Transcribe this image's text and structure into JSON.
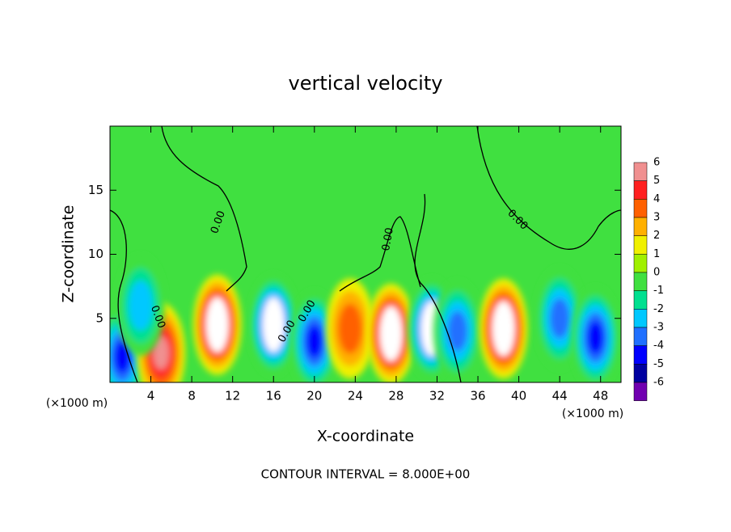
{
  "chart_data": {
    "type": "contour",
    "title": "vertical velocity",
    "xlabel": "X-coordinate",
    "ylabel": "Z-coordinate",
    "x_unit": "(×1000 m)",
    "y_unit": "(×1000 m)",
    "annotation": "CONTOUR INTERVAL = 8.000E+00",
    "contour_labels": [
      "0.00",
      "0.00",
      "0.00",
      "0.00",
      "0.00",
      "0.00"
    ],
    "xlim": [
      0,
      50
    ],
    "ylim": [
      0,
      20
    ],
    "xticks": [
      4,
      8,
      12,
      16,
      20,
      24,
      28,
      32,
      36,
      40,
      44,
      48
    ],
    "yticks": [
      5,
      10,
      15
    ],
    "background_color": "#40e040",
    "colorbar": {
      "ticks": [
        6,
        5,
        4,
        3,
        2,
        1,
        0,
        -1,
        -2,
        -3,
        -4,
        -5,
        -6
      ],
      "colors": [
        "#f09090",
        "#ff2020",
        "#ff6000",
        "#ffb000",
        "#f0f000",
        "#a0f000",
        "#40e040",
        "#00e090",
        "#00c8ff",
        "#2070ff",
        "#0000ff",
        "#0000a0",
        "#7000b0"
      ]
    },
    "blobs": [
      {
        "x": 1.2,
        "z": 2,
        "value": -5
      },
      {
        "x": 5,
        "z": 2.3,
        "value": 5
      },
      {
        "x": 10.5,
        "z": 4.5,
        "value": 6
      },
      {
        "x": 16,
        "z": 4.5,
        "value": -6
      },
      {
        "x": 20,
        "z": 3.2,
        "value": -5
      },
      {
        "x": 23.5,
        "z": 4.2,
        "value": 3
      },
      {
        "x": 27.5,
        "z": 3.8,
        "value": 6
      },
      {
        "x": 31.5,
        "z": 4.2,
        "value": -6
      },
      {
        "x": 34,
        "z": 4,
        "value": -4
      },
      {
        "x": 38.5,
        "z": 4.2,
        "value": 6
      },
      {
        "x": 44,
        "z": 5,
        "value": -4
      },
      {
        "x": 47.5,
        "z": 3.5,
        "value": -5
      },
      {
        "x": 3,
        "z": 6,
        "value": -3
      }
    ]
  }
}
